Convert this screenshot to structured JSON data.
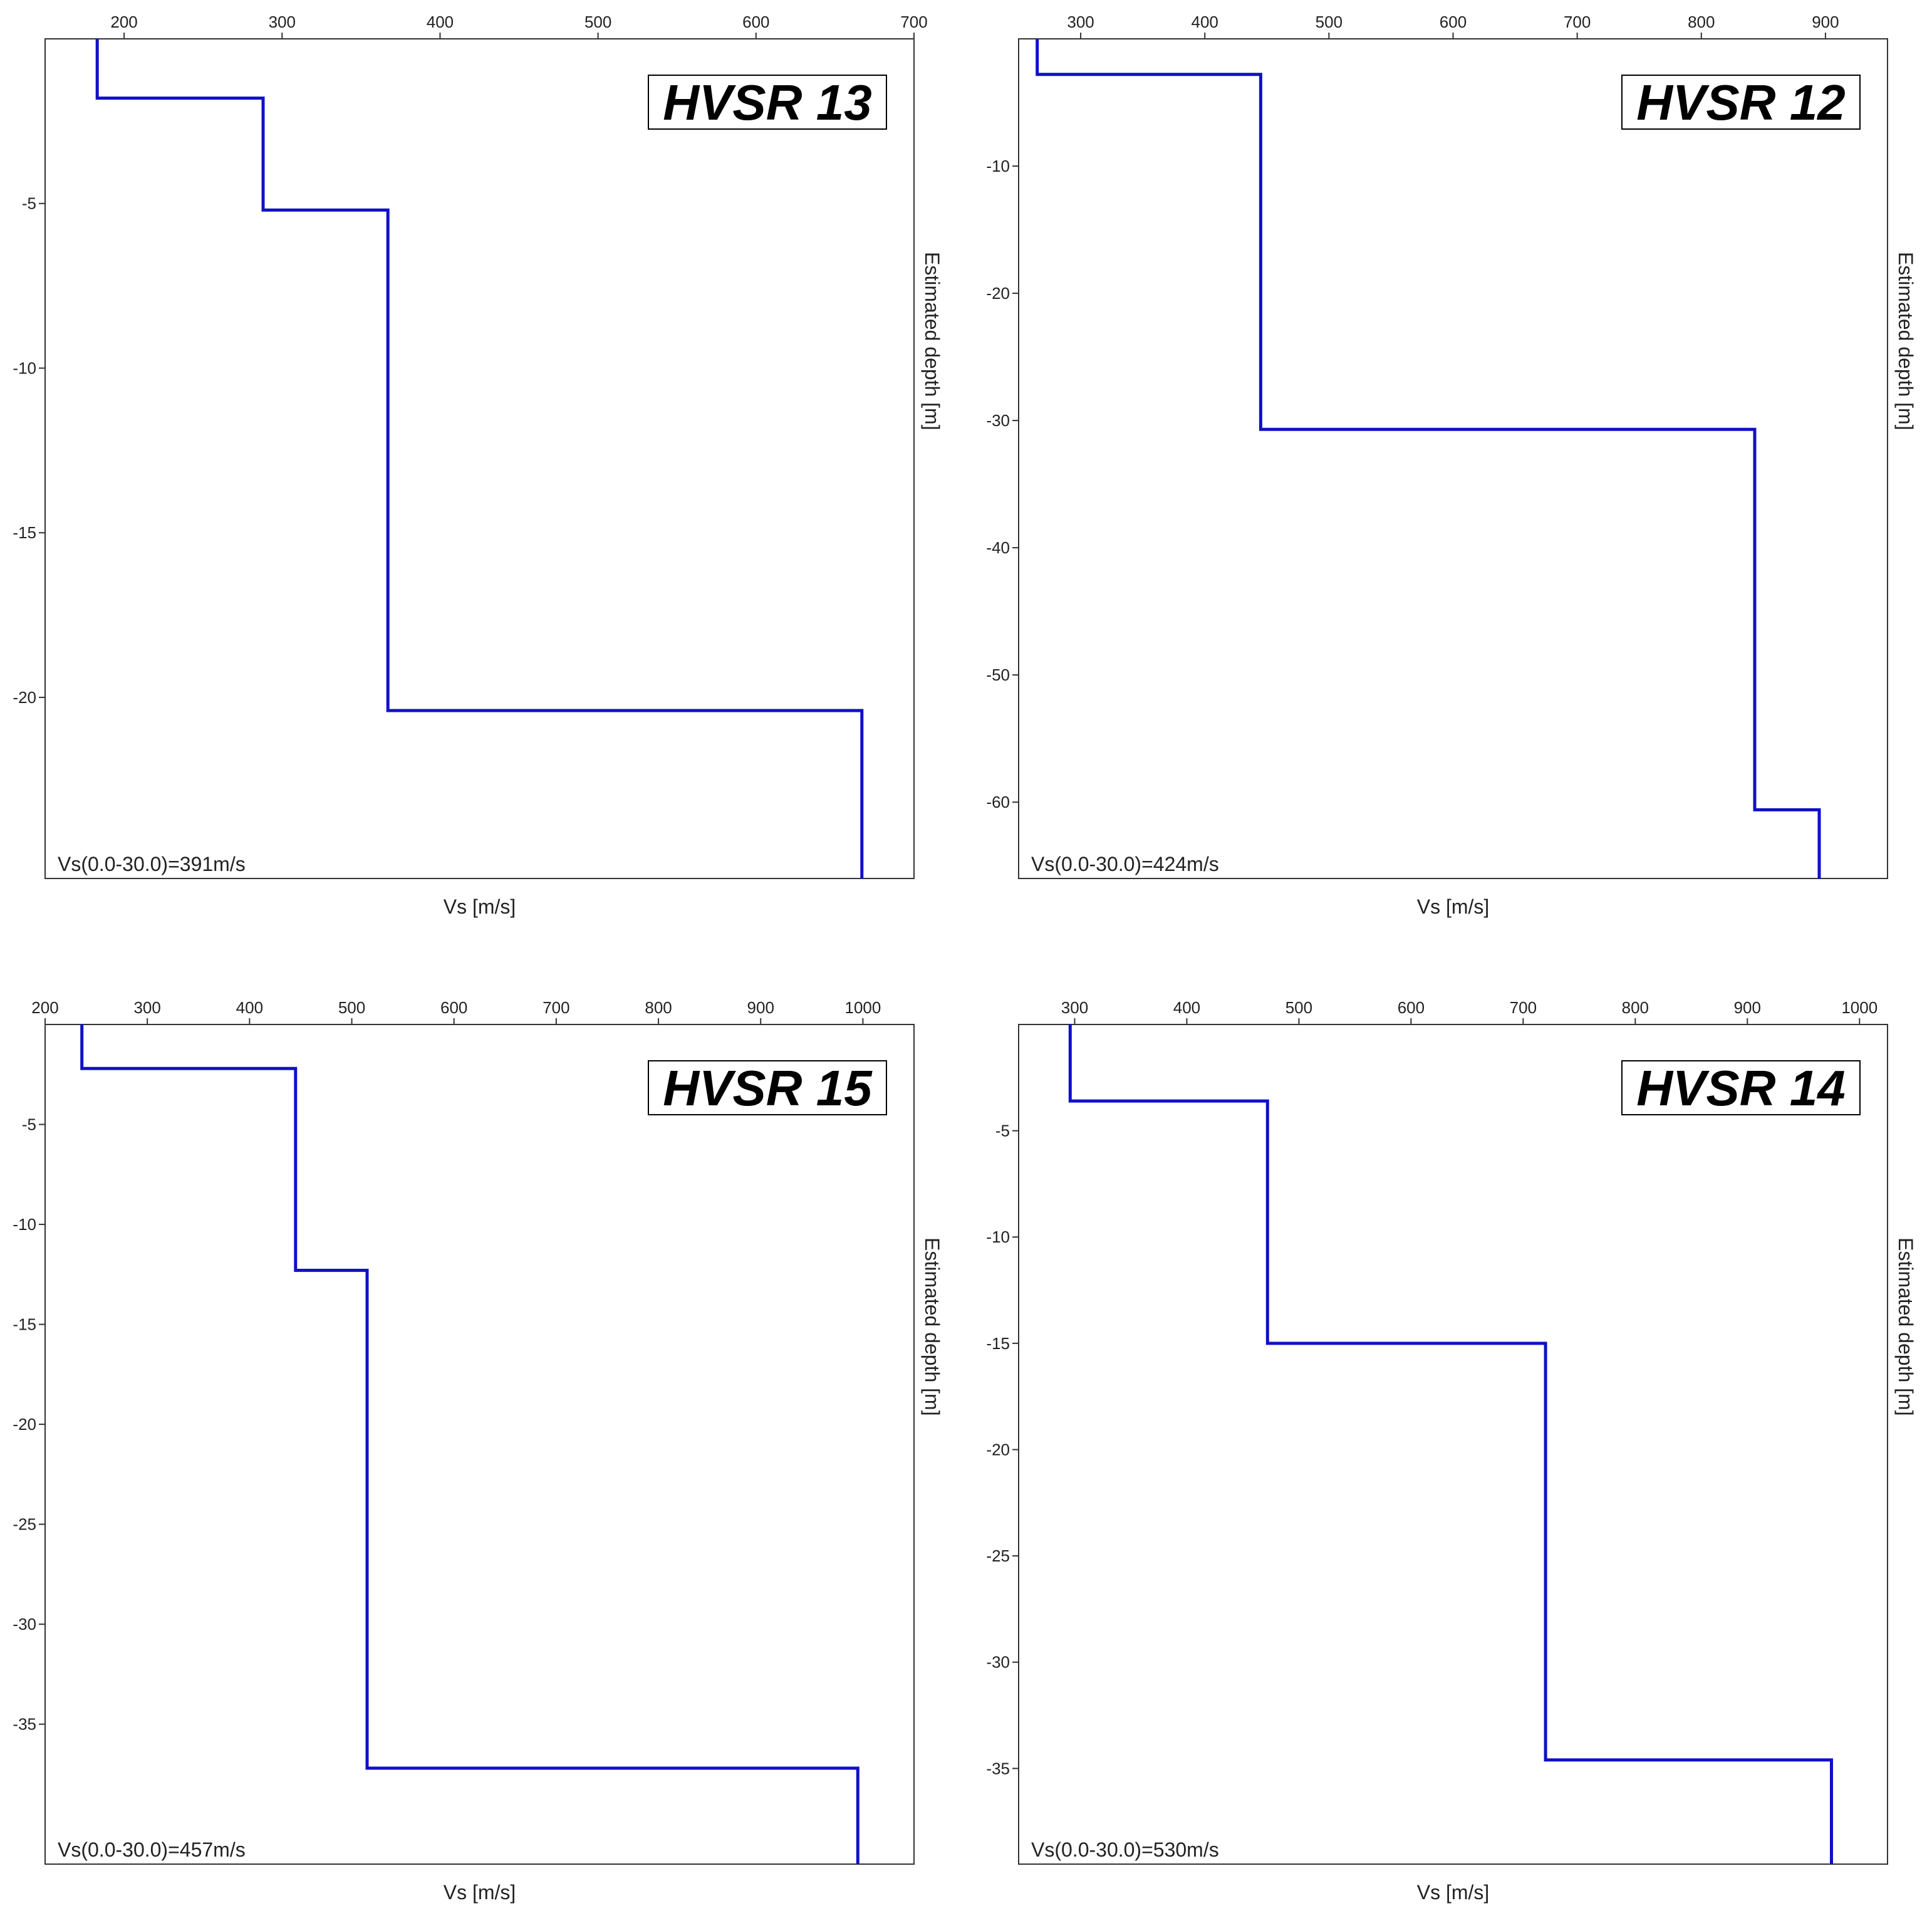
{
  "chart_data": [
    {
      "type": "line",
      "title": "HVSR 13",
      "xlabel": "Vs [m/s]",
      "ylabel": "Estimated depth [m]",
      "annotation": "Vs(0.0-30.0)=391m/s",
      "xlim": [
        150,
        700
      ],
      "ylim": [
        -25.5,
        0
      ],
      "xticks": [
        200,
        300,
        400,
        500,
        600,
        700
      ],
      "yticks": [
        -5,
        -10,
        -15,
        -20
      ],
      "grid": false,
      "color": "#1010c8",
      "x": [
        183,
        183,
        288,
        288,
        367,
        367,
        667,
        667
      ],
      "y": [
        0,
        -1.8,
        -1.8,
        -5.2,
        -5.2,
        -20.4,
        -20.4,
        -25.5
      ]
    },
    {
      "type": "line",
      "title": "HVSR 12",
      "xlabel": "Vs [m/s]",
      "ylabel": "Estimated depth [m]",
      "annotation": "Vs(0.0-30.0)=424m/s",
      "xlim": [
        250,
        950
      ],
      "ylim": [
        -66,
        0
      ],
      "xticks": [
        300,
        400,
        500,
        600,
        700,
        800,
        900
      ],
      "yticks": [
        -10,
        -20,
        -30,
        -40,
        -50,
        -60
      ],
      "grid": false,
      "color": "#1010c8",
      "x": [
        265,
        265,
        445,
        445,
        843,
        843,
        895,
        895
      ],
      "y": [
        0,
        -2.8,
        -2.8,
        -30.7,
        -30.7,
        -60.6,
        -60.6,
        -66
      ]
    },
    {
      "type": "line",
      "title": "HVSR 15",
      "xlabel": "Vs [m/s]",
      "ylabel": "Estimated depth [m]",
      "annotation": "Vs(0.0-30.0)=457m/s",
      "xlim": [
        200,
        1050
      ],
      "ylim": [
        -42,
        0
      ],
      "xticks": [
        200,
        300,
        400,
        500,
        600,
        700,
        800,
        900,
        1000
      ],
      "yticks": [
        -5,
        -10,
        -15,
        -20,
        -25,
        -30,
        -35
      ],
      "grid": false,
      "color": "#1010c8",
      "x": [
        236,
        236,
        445,
        445,
        515,
        515,
        995,
        995
      ],
      "y": [
        0,
        -2.2,
        -2.2,
        -12.3,
        -12.3,
        -37.2,
        -37.2,
        -42
      ]
    },
    {
      "type": "line",
      "title": "HVSR 14",
      "xlabel": "Vs [m/s]",
      "ylabel": "Estimated depth [m]",
      "annotation": "Vs(0.0-30.0)=530m/s",
      "xlim": [
        250,
        1025
      ],
      "ylim": [
        -39.5,
        0
      ],
      "xticks": [
        300,
        400,
        500,
        600,
        700,
        800,
        900,
        1000
      ],
      "yticks": [
        -5,
        -10,
        -15,
        -20,
        -25,
        -30,
        -35
      ],
      "grid": false,
      "color": "#1010c8",
      "x": [
        296,
        296,
        472,
        472,
        720,
        720,
        975,
        975
      ],
      "y": [
        0,
        -3.6,
        -3.6,
        -15,
        -15,
        -34.6,
        -34.6,
        -39.5
      ]
    }
  ]
}
